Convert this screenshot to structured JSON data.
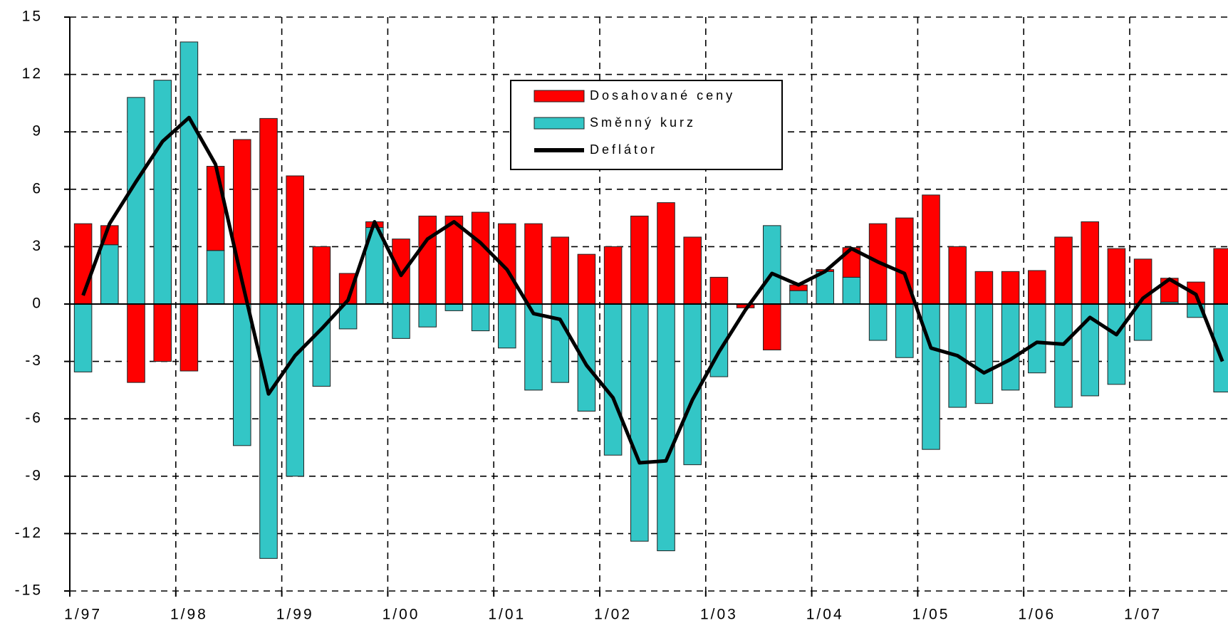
{
  "chart_data": {
    "type": "stacked_bar_line",
    "categories": [
      "1/97",
      null,
      null,
      null,
      "1/98",
      null,
      null,
      null,
      "1/99",
      null,
      null,
      null,
      "1/00",
      null,
      null,
      null,
      "1/01",
      null,
      null,
      null,
      "1/02",
      null,
      null,
      null,
      "1/03",
      null,
      null,
      null,
      "1/04",
      null,
      null,
      null,
      "1/05",
      null,
      null,
      null,
      "1/06",
      null,
      null,
      null,
      "1/07",
      null,
      null,
      null
    ],
    "series": [
      {
        "name": "Směnný kurz",
        "color": "#33c6c6",
        "kind": "bar",
        "values": [
          -3.55,
          3.1,
          10.8,
          11.7,
          13.7,
          2.8,
          -7.4,
          -13.3,
          -9.0,
          -4.3,
          -1.3,
          4.0,
          -1.8,
          -1.2,
          -0.35,
          -1.4,
          -2.3,
          -4.5,
          -4.1,
          -5.6,
          -7.9,
          -12.4,
          -12.9,
          -8.4,
          -3.8,
          0,
          4.1,
          0.7,
          1.7,
          1.4,
          -1.9,
          -2.8,
          -7.6,
          -5.4,
          -5.2,
          -4.5,
          -3.6,
          -5.4,
          -4.8,
          -4.2,
          -1.9,
          0.1,
          -0.7,
          -4.6
        ]
      },
      {
        "name": "Dosahované ceny",
        "color": "#ff0000",
        "kind": "bar",
        "values": [
          4.2,
          1.0,
          -4.1,
          -3.0,
          -3.5,
          4.4,
          8.6,
          9.7,
          6.7,
          3.0,
          1.6,
          0.3,
          3.4,
          4.6,
          4.6,
          4.8,
          4.2,
          4.2,
          3.5,
          2.6,
          3.0,
          4.6,
          5.3,
          3.5,
          1.4,
          -0.2,
          -2.4,
          0.3,
          0.1,
          1.55,
          4.2,
          4.5,
          5.7,
          3.0,
          1.7,
          1.7,
          1.75,
          3.5,
          4.3,
          2.9,
          2.35,
          1.25,
          1.15,
          2.9
        ]
      },
      {
        "name": "Deflátor",
        "color": "#000000",
        "kind": "line",
        "values": [
          0.45,
          4.2,
          6.4,
          8.5,
          9.75,
          7.3,
          1.2,
          -4.7,
          -2.7,
          -1.3,
          0.2,
          4.3,
          1.5,
          3.4,
          4.3,
          3.2,
          1.8,
          -0.5,
          -0.8,
          -3.2,
          -4.9,
          -8.3,
          -8.2,
          -5.0,
          -2.5,
          -0.3,
          1.6,
          1.0,
          1.7,
          2.9,
          2.2,
          1.6,
          -2.3,
          -2.7,
          -3.6,
          -2.9,
          -2.0,
          -2.1,
          -0.7,
          -1.6,
          0.3,
          1.3,
          0.5,
          -3.0
        ]
      }
    ],
    "ylim": [
      -15,
      15
    ],
    "yticks": [
      -15,
      -12,
      -9,
      -6,
      -3,
      0,
      3,
      6,
      9,
      12,
      15
    ],
    "grid": true
  }
}
